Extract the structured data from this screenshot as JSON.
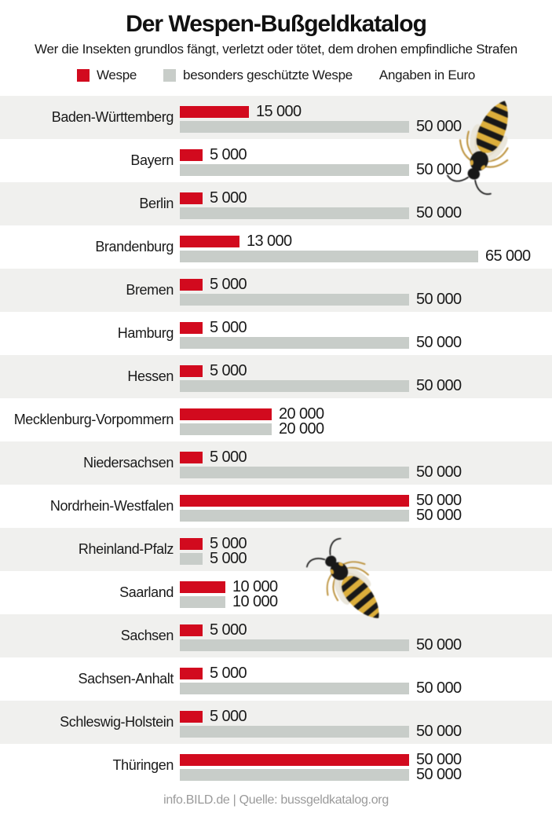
{
  "header": {
    "title": "Der Wespen-Bußgeldkatalog",
    "subtitle": "Wer die Insekten grundlos fängt, verletzt oder tötet, dem drohen empfindliche Strafen"
  },
  "legend": {
    "wespe_label": "Wespe",
    "geschuetzt_label": "besonders geschützte Wespe",
    "unit_label": "Angaben in Euro"
  },
  "colors": {
    "wespe_red": "#d20a1e",
    "geschuetzt_gray": "#c8cdc9",
    "row_stripe": "#f0f0ee"
  },
  "chart_data": {
    "type": "bar",
    "orientation": "horizontal",
    "unit": "Euro",
    "title": "Der Wespen-Bußgeldkatalog",
    "max_value": 65000,
    "categories": [
      "Baden-Württemberg",
      "Bayern",
      "Berlin",
      "Brandenburg",
      "Bremen",
      "Hamburg",
      "Hessen",
      "Mecklenburg-Vorpommern",
      "Niedersachsen",
      "Nordrhein-Westfalen",
      "Rheinland-Pfalz",
      "Saarland",
      "Sachsen",
      "Sachsen-Anhalt",
      "Schleswig-Holstein",
      "Thüringen"
    ],
    "series": [
      {
        "name": "Wespe",
        "values": [
          15000,
          5000,
          5000,
          13000,
          5000,
          5000,
          5000,
          20000,
          5000,
          50000,
          5000,
          10000,
          5000,
          5000,
          5000,
          50000
        ]
      },
      {
        "name": "besonders geschützte Wespe",
        "values": [
          50000,
          50000,
          50000,
          65000,
          50000,
          50000,
          50000,
          20000,
          50000,
          50000,
          5000,
          10000,
          50000,
          50000,
          50000,
          50000
        ]
      }
    ]
  },
  "footer": {
    "text": "info.BILD.de | Quelle: bussgeldkatalog.org"
  }
}
